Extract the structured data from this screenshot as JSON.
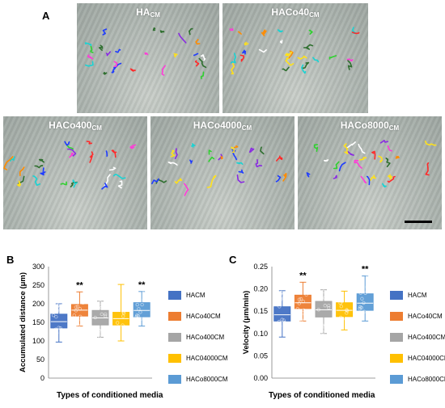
{
  "panel_a": {
    "letter": "A",
    "images": [
      {
        "label": "HA",
        "sub": "CM"
      },
      {
        "label": "HACo40",
        "sub": "CM"
      },
      {
        "label": "HACo400",
        "sub": "CM"
      },
      {
        "label": "HACo4000",
        "sub": "CM"
      },
      {
        "label": "HACo8000",
        "sub": "CM"
      }
    ],
    "track_colors": [
      "#1f3cff",
      "#ff2a2a",
      "#2fd12f",
      "#ffe11a",
      "#ff3bd8",
      "#ffffff",
      "#8a2be2",
      "#19d3d3",
      "#ff8c00",
      "#2f6f2f"
    ]
  },
  "panel_b": {
    "letter": "B"
  },
  "panel_c": {
    "letter": "C"
  },
  "legend_items": [
    {
      "label": "HACM",
      "color": "#4472c4"
    },
    {
      "label": "HACo40CM",
      "color": "#ed7d31"
    },
    {
      "label": "HACo400CM",
      "color": "#a5a5a5"
    },
    {
      "label": "HAC04000CM",
      "color": "#ffc000"
    },
    {
      "label": "HACo8000CM",
      "color": "#5b9bd5"
    }
  ],
  "chart_data": [
    {
      "type": "box",
      "ylabel": "Accumulated distance (μm)",
      "xlabel": "Types of conditioned media",
      "ylim": [
        0,
        300
      ],
      "yticks": [
        0,
        50,
        100,
        150,
        200,
        250,
        300
      ],
      "categories": [
        "HACM",
        "HACo40CM",
        "HACo400CM",
        "HAC04000CM",
        "HACo8000CM"
      ],
      "boxes": [
        {
          "min": 97,
          "q1": 135,
          "median": 152,
          "q3": 172,
          "max": 200,
          "significance": ""
        },
        {
          "min": 140,
          "q1": 167,
          "median": 183,
          "q3": 198,
          "max": 232,
          "significance": "**"
        },
        {
          "min": 110,
          "q1": 143,
          "median": 162,
          "q3": 182,
          "max": 207,
          "significance": ""
        },
        {
          "min": 100,
          "q1": 143,
          "median": 160,
          "q3": 177,
          "max": 252,
          "significance": ""
        },
        {
          "min": 140,
          "q1": 165,
          "median": 182,
          "q3": 203,
          "max": 233,
          "significance": "**"
        }
      ]
    },
    {
      "type": "box",
      "ylabel": "Velocity (μm/min)",
      "xlabel": "Types of conditioned media",
      "ylim": [
        0.0,
        0.25
      ],
      "yticks": [
        "0.00",
        "0.05",
        "0.10",
        "0.15",
        "0.20",
        "0.25"
      ],
      "categories": [
        "HACM",
        "HACo40CM",
        "HACo400CM",
        "HAC04000CM",
        "HACo8000CM"
      ],
      "boxes": [
        {
          "min": 0.092,
          "q1": 0.128,
          "median": 0.142,
          "q3": 0.16,
          "max": 0.196,
          "significance": ""
        },
        {
          "min": 0.128,
          "q1": 0.156,
          "median": 0.169,
          "q3": 0.186,
          "max": 0.215,
          "significance": "**"
        },
        {
          "min": 0.1,
          "q1": 0.137,
          "median": 0.153,
          "q3": 0.172,
          "max": 0.198,
          "significance": ""
        },
        {
          "min": 0.108,
          "q1": 0.138,
          "median": 0.152,
          "q3": 0.169,
          "max": 0.195,
          "significance": ""
        },
        {
          "min": 0.128,
          "q1": 0.152,
          "median": 0.168,
          "q3": 0.189,
          "max": 0.229,
          "significance": "**"
        }
      ]
    }
  ]
}
